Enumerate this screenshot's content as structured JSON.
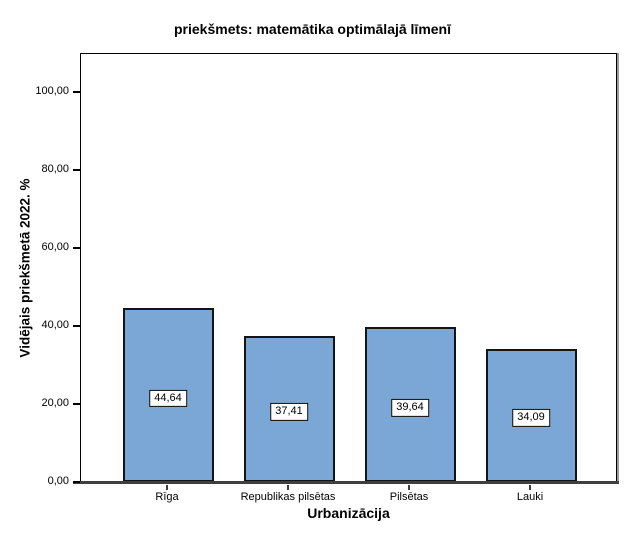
{
  "chart_data": {
    "type": "bar",
    "title": "priekšmets: matemātika optimālajā līmenī",
    "xlabel": "Urbanizācija",
    "ylabel": "Vidējais priekšmetā 2022. %",
    "categories": [
      "Rīga",
      "Republikas pilsētas",
      "Pilsētas",
      "Lauki"
    ],
    "values": [
      44.64,
      37.41,
      39.64,
      34.09
    ],
    "value_labels": [
      "44,64",
      "37,41",
      "39,64",
      "34,09"
    ],
    "y_ticks": {
      "values": [
        0,
        20,
        40,
        60,
        80,
        100
      ],
      "labels": [
        "0,00",
        "20,00",
        "40,00",
        "60,00",
        "80,00",
        "100,00"
      ]
    },
    "ylim": [
      0,
      110
    ],
    "grid": false,
    "legend": null,
    "colors": {
      "bar_fill": "#7AA7D6",
      "bar_border": "#141414",
      "axis_line": "#3F3F3F",
      "frame_border": "#000000",
      "frame_shadow": "#9B9B9B",
      "label_box_bg": "#FFFFFF",
      "text": "#000000"
    }
  }
}
